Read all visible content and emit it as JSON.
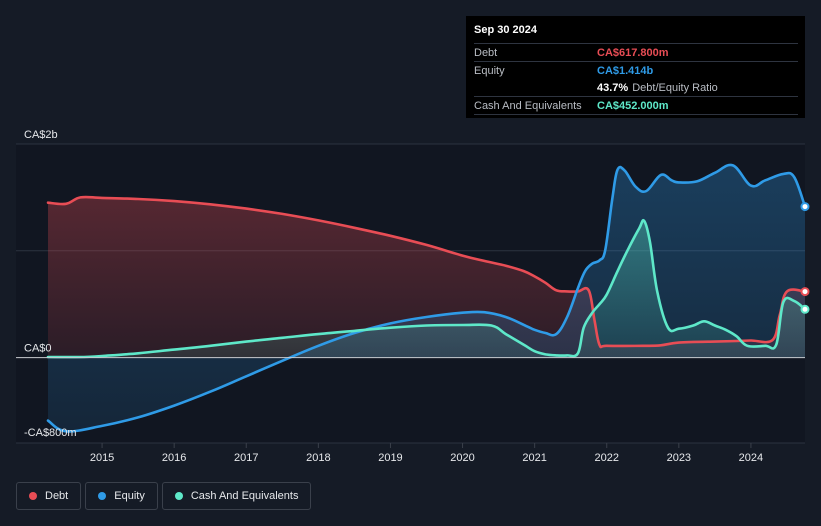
{
  "tooltip": {
    "date": "Sep 30 2024",
    "rows": [
      {
        "label": "Debt",
        "value": "CA$617.800m",
        "color": "#e84d55"
      },
      {
        "label": "Equity",
        "value": "CA$1.414b",
        "color": "#2f9be7"
      },
      {
        "ratio_value": "43.7%",
        "ratio_label": "Debt/Equity Ratio"
      },
      {
        "label": "Cash And Equivalents",
        "value": "CA$452.000m",
        "color": "#5ee8c9"
      }
    ]
  },
  "legend": [
    {
      "label": "Debt",
      "color": "#e84d55"
    },
    {
      "label": "Equity",
      "color": "#2f9be7"
    },
    {
      "label": "Cash And Equivalents",
      "color": "#5ee8c9"
    }
  ],
  "chart_data": {
    "type": "area",
    "title": "",
    "xlabel": "",
    "ylabel": "",
    "ylim": [
      -800,
      2000
    ],
    "xlim": [
      2014.25,
      2024.75
    ],
    "y_tick_labels": [
      {
        "value": 2000,
        "label": "CA$2b"
      },
      {
        "value": 0,
        "label": "CA$0"
      },
      {
        "value": -800,
        "label": "-CA$800m"
      }
    ],
    "x_ticks": [
      2015,
      2016,
      2017,
      2018,
      2019,
      2020,
      2021,
      2022,
      2023,
      2024
    ],
    "grid": true,
    "legend_position": "bottom-left",
    "series": [
      {
        "name": "Debt",
        "color": "#e84d55",
        "x": [
          2014.25,
          2014.5,
          2014.7,
          2015.0,
          2015.5,
          2016.0,
          2016.5,
          2017.0,
          2017.5,
          2018.0,
          2018.5,
          2019.0,
          2019.5,
          2020.0,
          2020.3,
          2020.6,
          2020.85,
          2021.0,
          2021.15,
          2021.3,
          2021.45,
          2021.6,
          2021.75,
          2021.83,
          2021.9,
          2022.0,
          2022.5,
          2022.75,
          2023.0,
          2023.5,
          2023.8,
          2024.0,
          2024.3,
          2024.4,
          2024.5,
          2024.75
        ],
        "y": [
          1450,
          1440,
          1500,
          1495,
          1485,
          1465,
          1435,
          1395,
          1345,
          1285,
          1215,
          1140,
          1055,
          955,
          905,
          860,
          810,
          760,
          700,
          630,
          620,
          620,
          630,
          350,
          120,
          110,
          110,
          115,
          140,
          150,
          155,
          160,
          165,
          400,
          620,
          618
        ]
      },
      {
        "name": "Equity",
        "color": "#2f9be7",
        "x": [
          2014.25,
          2014.5,
          2015.0,
          2015.5,
          2016.0,
          2016.5,
          2017.0,
          2017.5,
          2018.0,
          2018.5,
          2019.0,
          2019.5,
          2020.0,
          2020.3,
          2020.6,
          2020.9,
          2021.0,
          2021.15,
          2021.3,
          2021.45,
          2021.6,
          2021.7,
          2021.8,
          2021.9,
          2021.98,
          2022.08,
          2022.15,
          2022.25,
          2022.4,
          2022.55,
          2022.75,
          2022.9,
          2023.0,
          2023.25,
          2023.5,
          2023.75,
          2024.0,
          2024.2,
          2024.45,
          2024.6,
          2024.75
        ],
        "y": [
          -590,
          -690,
          -640,
          -560,
          -450,
          -320,
          -175,
          -30,
          110,
          230,
          320,
          380,
          420,
          425,
          380,
          290,
          260,
          230,
          220,
          380,
          650,
          810,
          880,
          910,
          1010,
          1500,
          1760,
          1750,
          1600,
          1560,
          1710,
          1660,
          1640,
          1650,
          1730,
          1800,
          1610,
          1660,
          1720,
          1690,
          1414
        ]
      },
      {
        "name": "Cash And Equivalents",
        "color": "#5ee8c9",
        "x": [
          2014.25,
          2014.75,
          2015.0,
          2015.5,
          2016.0,
          2016.5,
          2017.0,
          2017.5,
          2018.0,
          2018.5,
          2019.0,
          2019.5,
          2020.0,
          2020.4,
          2020.6,
          2020.85,
          2021.0,
          2021.15,
          2021.3,
          2021.45,
          2021.6,
          2021.68,
          2021.8,
          2021.9,
          2022.0,
          2022.15,
          2022.3,
          2022.45,
          2022.52,
          2022.6,
          2022.7,
          2022.85,
          2023.0,
          2023.2,
          2023.35,
          2023.5,
          2023.65,
          2023.8,
          2023.95,
          2024.2,
          2024.35,
          2024.45,
          2024.6,
          2024.75
        ],
        "y": [
          5,
          5,
          15,
          40,
          75,
          110,
          150,
          185,
          220,
          250,
          280,
          300,
          305,
          300,
          220,
          120,
          60,
          30,
          20,
          20,
          40,
          280,
          420,
          500,
          590,
          810,
          1020,
          1210,
          1280,
          1080,
          620,
          280,
          270,
          300,
          340,
          300,
          260,
          200,
          110,
          110,
          120,
          520,
          530,
          452
        ]
      }
    ]
  }
}
